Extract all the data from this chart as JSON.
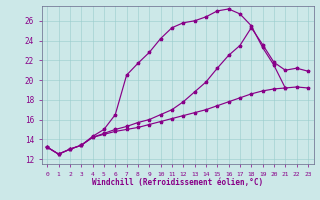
{
  "xlabel": "Windchill (Refroidissement éolien,°C)",
  "background_color": "#cce8e8",
  "line_color": "#880088",
  "xlim_min": -0.5,
  "xlim_max": 23.5,
  "ylim_min": 11.5,
  "ylim_max": 27.5,
  "yticks": [
    12,
    14,
    16,
    18,
    20,
    22,
    24,
    26
  ],
  "xticks": [
    0,
    1,
    2,
    3,
    4,
    5,
    6,
    7,
    8,
    9,
    10,
    11,
    12,
    13,
    14,
    15,
    16,
    17,
    18,
    19,
    20,
    21,
    22,
    23
  ],
  "curve1_x": [
    0,
    1,
    2,
    3,
    4,
    5,
    6,
    7,
    8,
    9,
    10,
    11,
    12,
    13,
    14,
    15,
    16,
    17,
    18,
    19,
    20,
    21
  ],
  "curve1_y": [
    13.2,
    12.5,
    13.0,
    13.4,
    14.3,
    15.0,
    16.5,
    20.5,
    21.7,
    22.8,
    24.2,
    25.3,
    25.8,
    26.0,
    26.4,
    27.0,
    27.2,
    26.7,
    25.5,
    23.3,
    21.5,
    19.2
  ],
  "curve2_x": [
    0,
    1,
    2,
    3,
    4,
    5,
    6,
    7,
    8,
    9,
    10,
    11,
    12,
    13,
    14,
    15,
    16,
    17,
    18,
    19,
    20,
    21,
    22,
    23
  ],
  "curve2_y": [
    13.2,
    12.5,
    13.0,
    13.4,
    14.2,
    14.5,
    14.8,
    15.0,
    15.2,
    15.5,
    15.8,
    16.1,
    16.4,
    16.7,
    17.0,
    17.4,
    17.8,
    18.2,
    18.6,
    18.9,
    19.1,
    19.2,
    19.3,
    19.2
  ],
  "curve3_x": [
    0,
    1,
    2,
    3,
    4,
    5,
    6,
    7,
    8,
    9,
    10,
    11,
    12,
    13,
    14,
    15,
    16,
    17,
    18,
    19,
    20,
    21,
    22,
    23
  ],
  "curve3_y": [
    13.2,
    12.5,
    13.0,
    13.4,
    14.2,
    14.6,
    15.0,
    15.3,
    15.7,
    16.0,
    16.5,
    17.0,
    17.8,
    18.8,
    19.8,
    21.2,
    22.5,
    23.5,
    25.3,
    23.6,
    21.8,
    21.0,
    21.2,
    20.9
  ]
}
